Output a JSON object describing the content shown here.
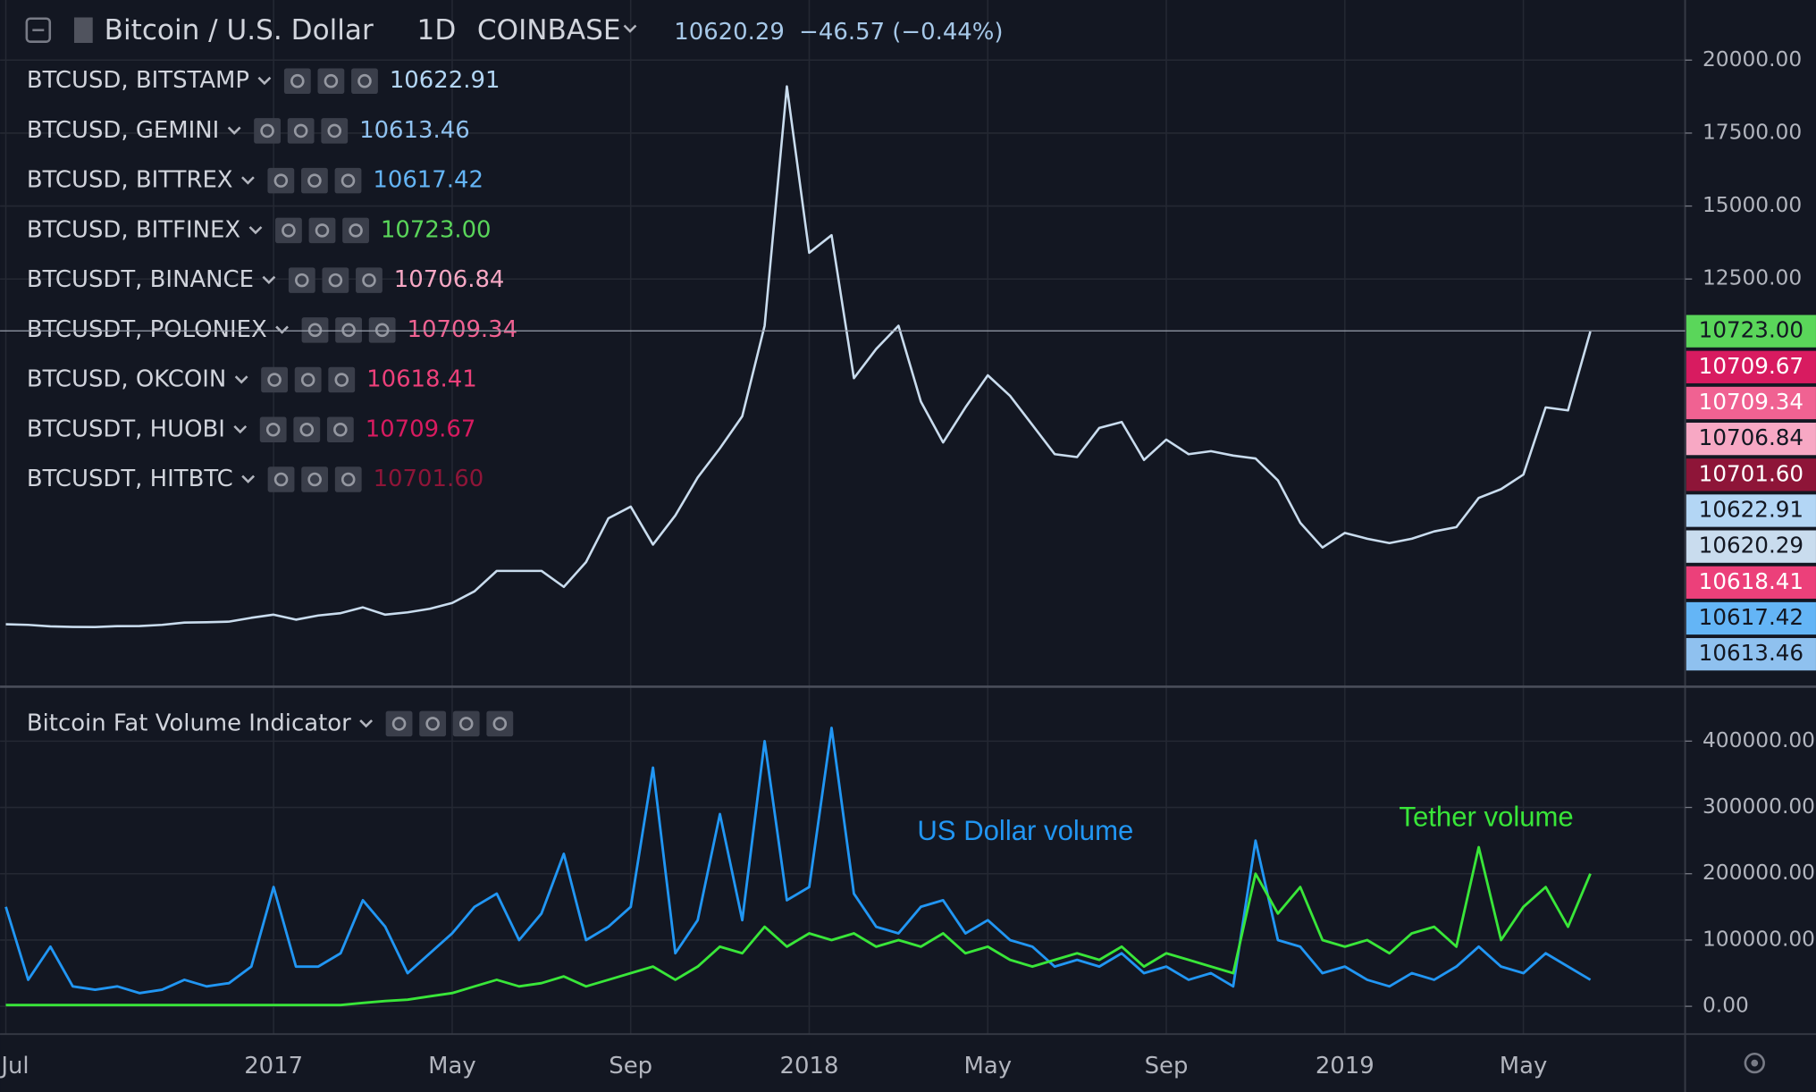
{
  "chart_data": [
    {
      "type": "line",
      "title": "Bitcoin / U.S. Dollar",
      "interval": "1D",
      "exchange": "COINBASE",
      "last": 10620.29,
      "change": "−46.57 (−0.44%)",
      "color": "#c9dcee",
      "categories": [
        "Jul",
        null,
        null,
        null,
        null,
        null,
        null,
        null,
        null,
        null,
        null,
        null,
        "2017",
        null,
        null,
        null,
        null,
        null,
        null,
        null,
        "May",
        null,
        null,
        null,
        null,
        null,
        null,
        null,
        "Sep",
        null,
        null,
        null,
        null,
        null,
        null,
        null,
        "2018",
        null,
        null,
        null,
        null,
        null,
        null,
        null,
        "May",
        null,
        null,
        null,
        null,
        null,
        null,
        null,
        "Sep",
        null,
        null,
        null,
        null,
        null,
        null,
        null,
        "2019",
        null,
        null,
        null,
        null,
        null,
        null,
        null,
        "May",
        null,
        null,
        null
      ],
      "values": [
        670,
        650,
        600,
        580,
        575,
        605,
        610,
        650,
        730,
        740,
        760,
        890,
        1000,
        830,
        970,
        1050,
        1250,
        1000,
        1080,
        1200,
        1400,
        1800,
        2500,
        2500,
        2500,
        1950,
        2800,
        4300,
        4700,
        3400,
        4400,
        5700,
        6700,
        7800,
        10900,
        19100,
        13400,
        14000,
        9100,
        10100,
        10900,
        8300,
        6900,
        8100,
        9200,
        8500,
        7500,
        6500,
        6400,
        7400,
        7600,
        6300,
        7000,
        6500,
        6600,
        6450,
        6350,
        5600,
        4150,
        3300,
        3800,
        3600,
        3450,
        3600,
        3850,
        4000,
        5000,
        5300,
        5800,
        8100,
        8000,
        10700
      ],
      "ylim": [
        -1350,
        22060
      ],
      "yticks": [
        {
          "value": 12500,
          "label": "12500.00"
        },
        {
          "value": 15000,
          "label": "15000.00"
        },
        {
          "value": 17500,
          "label": "17500.00"
        },
        {
          "value": 20000,
          "label": "20000.00"
        }
      ],
      "grid": true,
      "overlays": [
        {
          "name": "BTCUSD, BITSTAMP",
          "value": 10622.91,
          "color": "#b3d6f5"
        },
        {
          "name": "BTCUSD, GEMINI",
          "value": 10613.46,
          "color": "#8fc1ef"
        },
        {
          "name": "BTCUSD, BITTREX",
          "value": 10617.42,
          "color": "#64b5f6"
        },
        {
          "name": "BTCUSD, BITFINEX",
          "value": 10723,
          "value_label": "10723.00",
          "color": "#5ad65a"
        },
        {
          "name": "BTCUSDT, BINANCE",
          "value": 10706.84,
          "color": "#f7a8c4"
        },
        {
          "name": "BTCUSDT, POLONIEX",
          "value": 10709.34,
          "color": "#f06292"
        },
        {
          "name": "BTCUSD, OKCOIN",
          "value": 10618.41,
          "color": "#ec407a"
        },
        {
          "name": "BTCUSDT, HUOBI",
          "value": 10709.67,
          "color": "#d81b60"
        },
        {
          "name": "BTCUSDT, HITBTC",
          "value": 10701.6,
          "value_label": "10701.60",
          "color": "#8e1538"
        }
      ]
    },
    {
      "type": "line",
      "title": "Bitcoin Fat Volume Indicator",
      "series": [
        {
          "name": "US Dollar volume",
          "color": "#2196f3",
          "values": [
            150000,
            40000,
            90000,
            30000,
            25000,
            30000,
            20000,
            25000,
            40000,
            30000,
            35000,
            60000,
            180000,
            60000,
            60000,
            80000,
            160000,
            120000,
            50000,
            80000,
            110000,
            150000,
            170000,
            100000,
            140000,
            230000,
            100000,
            120000,
            150000,
            360000,
            80000,
            130000,
            290000,
            130000,
            400000,
            160000,
            180000,
            420000,
            170000,
            120000,
            110000,
            150000,
            160000,
            110000,
            130000,
            100000,
            90000,
            60000,
            70000,
            60000,
            80000,
            50000,
            60000,
            40000,
            50000,
            30000,
            250000,
            100000,
            90000,
            50000,
            60000,
            40000,
            30000,
            50000,
            40000,
            60000,
            90000,
            60000,
            50000,
            80000,
            60000,
            40000
          ]
        },
        {
          "name": "Tether volume",
          "color": "#39e639",
          "values": [
            2000,
            2000,
            2000,
            2000,
            2000,
            2000,
            2000,
            2000,
            2000,
            2000,
            2000,
            2000,
            2000,
            2000,
            2000,
            2000,
            5000,
            8000,
            10000,
            15000,
            20000,
            30000,
            40000,
            30000,
            35000,
            45000,
            30000,
            40000,
            50000,
            60000,
            40000,
            60000,
            90000,
            80000,
            120000,
            90000,
            110000,
            100000,
            110000,
            90000,
            100000,
            90000,
            110000,
            80000,
            90000,
            70000,
            60000,
            70000,
            80000,
            70000,
            90000,
            60000,
            80000,
            70000,
            60000,
            50000,
            200000,
            140000,
            180000,
            100000,
            90000,
            100000,
            80000,
            110000,
            120000,
            90000,
            240000,
            100000,
            150000,
            180000,
            120000,
            200000
          ]
        }
      ],
      "ylim": [
        -41900,
        478600
      ],
      "yticks": [
        {
          "value": 0,
          "label": "0.00"
        },
        {
          "value": 100000,
          "label": "100000.00"
        },
        {
          "value": 200000,
          "label": "200000.00"
        },
        {
          "value": 300000,
          "label": "300000.00"
        },
        {
          "value": 400000,
          "label": "400000.00"
        }
      ],
      "grid": true
    }
  ]
}
